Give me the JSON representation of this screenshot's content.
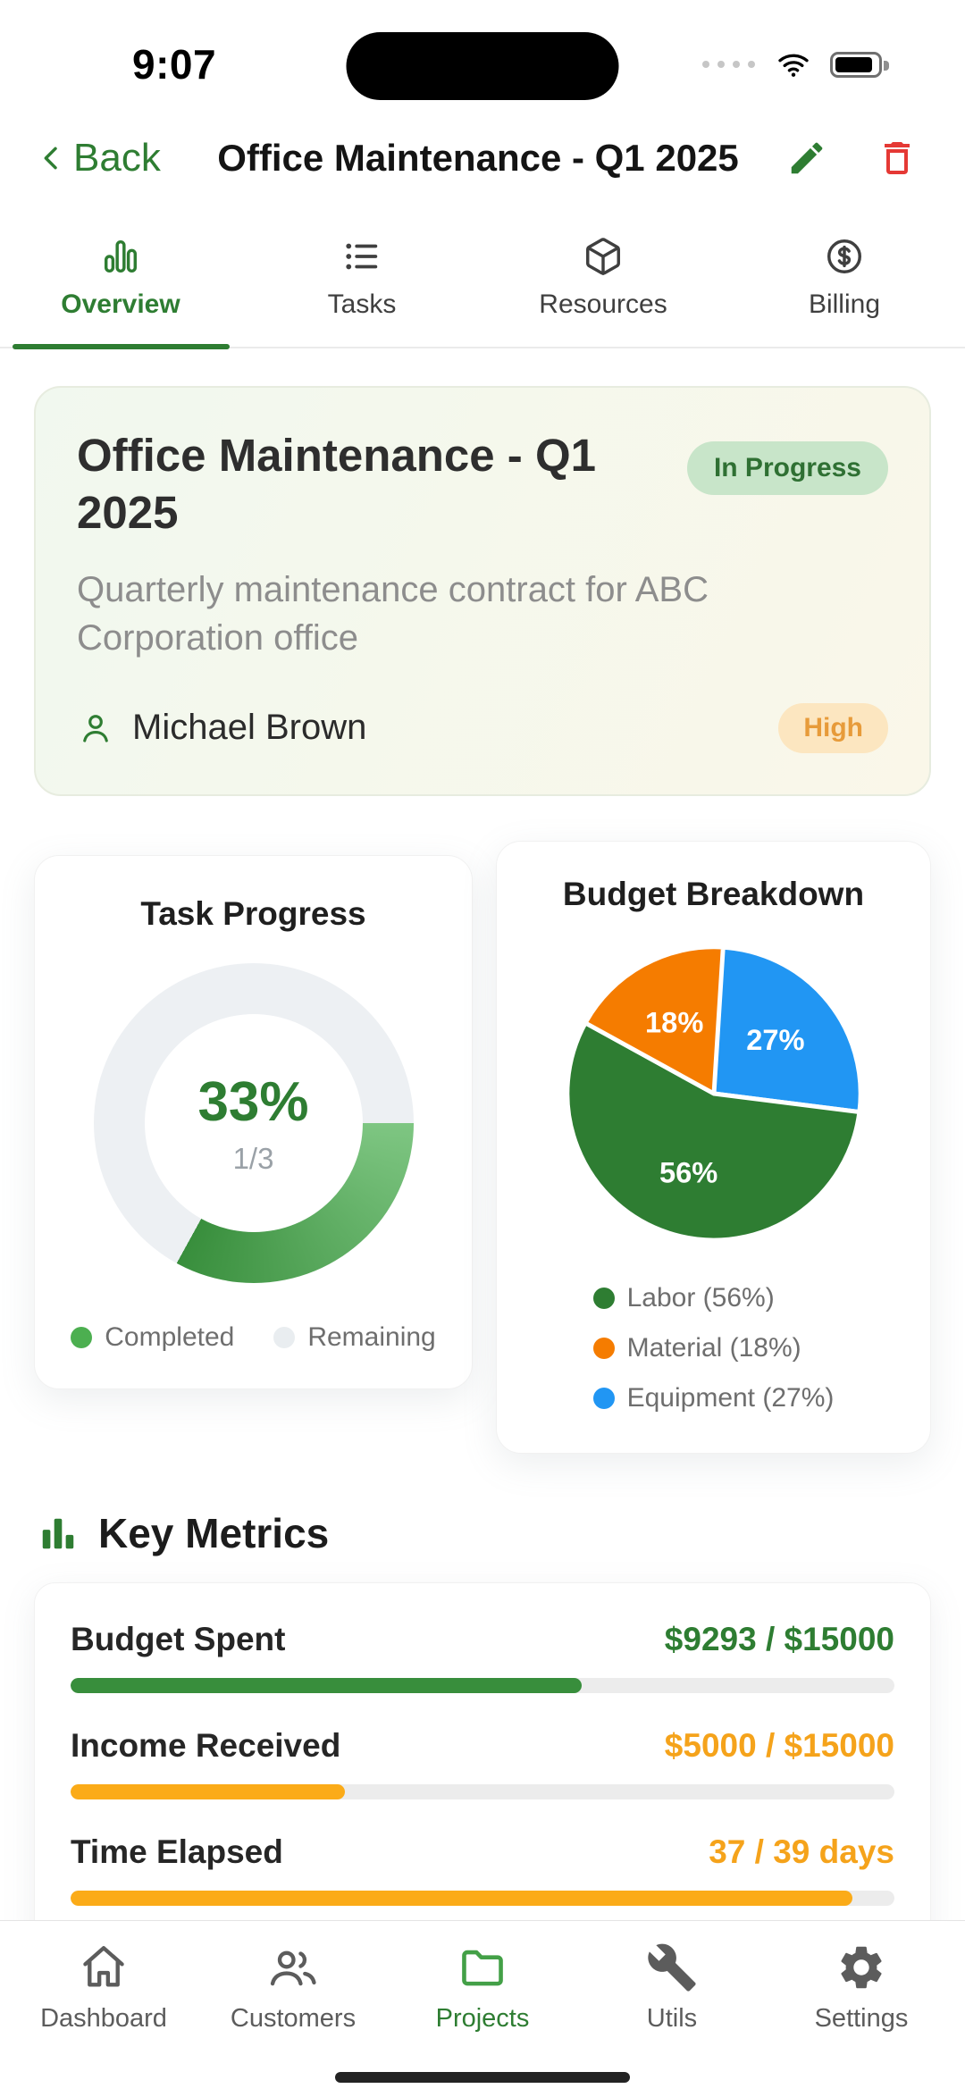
{
  "status_bar": {
    "time": "9:07",
    "icons": [
      "cellular-signal-dots",
      "wifi-icon",
      "battery-icon"
    ]
  },
  "header": {
    "back_label": "Back",
    "title": "Office Maintenance - Q1 2025",
    "actions": [
      {
        "icon": "edit-pencil-icon"
      },
      {
        "icon": "trash-icon"
      }
    ]
  },
  "tabs": [
    {
      "label": "Overview",
      "icon": "bar-chart-icon",
      "active": true
    },
    {
      "label": "Tasks",
      "icon": "list-icon",
      "active": false
    },
    {
      "label": "Resources",
      "icon": "package-icon",
      "active": false
    },
    {
      "label": "Billing",
      "icon": "dollar-circle-icon",
      "active": false
    }
  ],
  "project_card": {
    "title": "Office Maintenance - Q1 2025",
    "status_badge": "In Progress",
    "description": "Quarterly maintenance contract for ABC Corporation office",
    "owner": "Michael Brown",
    "priority_badge": "High",
    "colors": {
      "status_bg": "#c8e5c9",
      "status_text": "#2f7033",
      "priority_bg": "#fce6c0",
      "priority_text": "#e79b3a"
    }
  },
  "chart_data": [
    {
      "type": "donut",
      "title": "Task Progress",
      "categories": [
        "Completed",
        "Remaining"
      ],
      "values": [
        33,
        67
      ],
      "center_label": "33%",
      "sub_label": "1/3",
      "arc_start": "#7ec682",
      "arc_end": "#388e3c",
      "track": "#edf0f3",
      "legend": [
        {
          "label": "Completed",
          "color": "#4caf50"
        },
        {
          "label": "Remaining",
          "color": "#e9edf0"
        }
      ]
    },
    {
      "type": "pie",
      "title": "Budget Breakdown",
      "categories": [
        "Labor",
        "Material",
        "Equipment"
      ],
      "values": [
        56,
        18,
        27
      ],
      "slices": [
        {
          "name": "Equipment",
          "pct": 27,
          "color": "#2196f3"
        },
        {
          "name": "Labor",
          "pct": 56,
          "color": "#2e7d32"
        },
        {
          "name": "Material",
          "pct": 18,
          "color": "#f57c00"
        }
      ],
      "legend": [
        {
          "label": "Labor (56%)",
          "color": "#2e7d32"
        },
        {
          "label": "Material (18%)",
          "color": "#f57c00"
        },
        {
          "label": "Equipment (27%)",
          "color": "#2196f3"
        }
      ]
    },
    {
      "type": "progress",
      "title": "Key Metrics",
      "items": [
        {
          "label": "Budget Spent",
          "value_text": "$9293 / $15000",
          "value": 9293,
          "max": 15000,
          "value_color": "#2e7d32",
          "bar_color": "#388e3c"
        },
        {
          "label": "Income Received",
          "value_text": "$5000 / $15000",
          "value": 5000,
          "max": 15000,
          "value_color": "#f5a31b",
          "bar_color": "#fbab18"
        },
        {
          "label": "Time Elapsed",
          "value_text": "37 / 39 days",
          "value": 37,
          "max": 39,
          "value_color": "#f5a31b",
          "bar_color": "#fbab18"
        }
      ]
    }
  ],
  "bottom_nav": [
    {
      "label": "Dashboard",
      "icon": "home-icon",
      "active": false
    },
    {
      "label": "Customers",
      "icon": "people-icon",
      "active": false
    },
    {
      "label": "Projects",
      "icon": "folder-icon",
      "active": true
    },
    {
      "label": "Utils",
      "icon": "wrench-icon",
      "active": false
    },
    {
      "label": "Settings",
      "icon": "gear-icon",
      "active": false
    }
  ]
}
